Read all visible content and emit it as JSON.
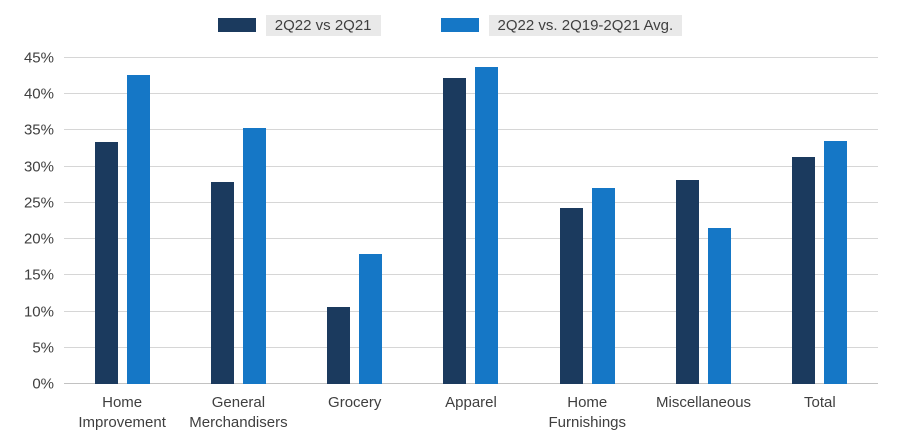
{
  "chart_data": {
    "type": "bar",
    "title": "",
    "xlabel": "",
    "ylabel": "",
    "categories": [
      "Home Improvement",
      "General Merchandisers",
      "Grocery",
      "Apparel",
      "Home Furnishings",
      "Miscellaneous",
      "Total"
    ],
    "series": [
      {
        "name": "2Q22 vs 2Q21",
        "color": "#1b3a5e",
        "values": [
          33.4,
          27.9,
          10.7,
          42.3,
          24.3,
          28.2,
          31.3
        ]
      },
      {
        "name": "2Q22 vs. 2Q19-2Q21 Avg.",
        "color": "#1577c6",
        "values": [
          42.7,
          35.3,
          18.0,
          43.8,
          27.0,
          21.5,
          33.5
        ]
      }
    ],
    "ylim": [
      0,
      45
    ],
    "yticks": [
      0,
      5,
      10,
      15,
      20,
      25,
      30,
      35,
      40,
      45
    ],
    "ytick_suffix": "%",
    "grid": "horizontal",
    "legend_position": "top",
    "colors": {
      "series1": "#1b3a5e",
      "series2": "#1577c6",
      "gridline": "#d6d6d6",
      "text": "#3f3f3f"
    }
  }
}
